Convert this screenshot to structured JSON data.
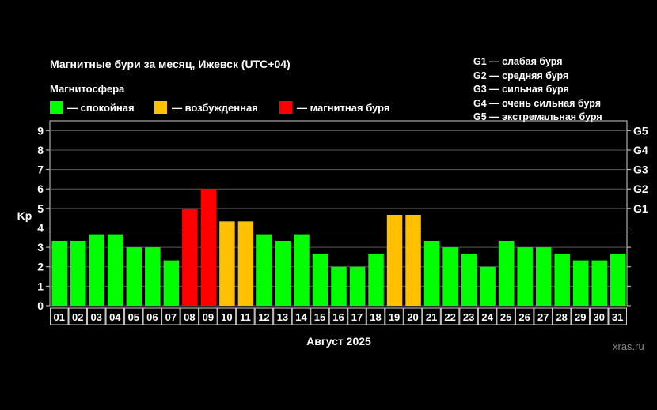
{
  "chart_data": {
    "type": "bar",
    "title": "Магнитные бури за месяц, Ижевск (UTC+04)",
    "xlabel": "Август 2025",
    "ylabel": "Kp",
    "ylim": [
      0,
      9.5
    ],
    "yticks": [
      "0",
      "1",
      "2",
      "3",
      "4",
      "5",
      "6",
      "7",
      "8",
      "9"
    ],
    "gticks": [
      {
        "label": "G1",
        "value": 5
      },
      {
        "label": "G2",
        "value": 6
      },
      {
        "label": "G3",
        "value": 7
      },
      {
        "label": "G4",
        "value": 8
      },
      {
        "label": "G5",
        "value": 9
      }
    ],
    "categories": [
      "01",
      "02",
      "03",
      "04",
      "05",
      "06",
      "07",
      "08",
      "09",
      "10",
      "11",
      "12",
      "13",
      "14",
      "15",
      "16",
      "17",
      "18",
      "19",
      "20",
      "21",
      "22",
      "23",
      "24",
      "25",
      "26",
      "27",
      "28",
      "29",
      "30",
      "31"
    ],
    "values": [
      3.33,
      3.33,
      3.67,
      3.67,
      3.0,
      3.0,
      2.33,
      5.0,
      6.0,
      4.33,
      4.33,
      3.67,
      3.33,
      3.67,
      2.67,
      2.0,
      2.0,
      2.67,
      4.67,
      4.67,
      3.33,
      3.0,
      2.67,
      2.0,
      3.33,
      3.0,
      3.0,
      2.67,
      2.33,
      2.33,
      2.67
    ],
    "levels": [
      "calm",
      "calm",
      "calm",
      "calm",
      "calm",
      "calm",
      "calm",
      "storm",
      "storm",
      "excited",
      "excited",
      "calm",
      "calm",
      "calm",
      "calm",
      "calm",
      "calm",
      "calm",
      "excited",
      "excited",
      "calm",
      "calm",
      "calm",
      "calm",
      "calm",
      "calm",
      "calm",
      "calm",
      "calm",
      "calm",
      "calm"
    ]
  },
  "legend": {
    "heading": "Магнитосфера",
    "items": [
      {
        "key": "calm",
        "label": "— спокойная",
        "color": "#00ff00"
      },
      {
        "key": "excited",
        "label": "— возбужденная",
        "color": "#ffc000"
      },
      {
        "key": "storm",
        "label": "— магнитная буря",
        "color": "#ff0000"
      }
    ]
  },
  "storm_scale": [
    "G1 — слабая буря",
    "G2 — средняя буря",
    "G3 — сильная буря",
    "G4 — очень сильная буря",
    "G5 — экстремальная буря"
  ],
  "watermark": "xras.ru"
}
